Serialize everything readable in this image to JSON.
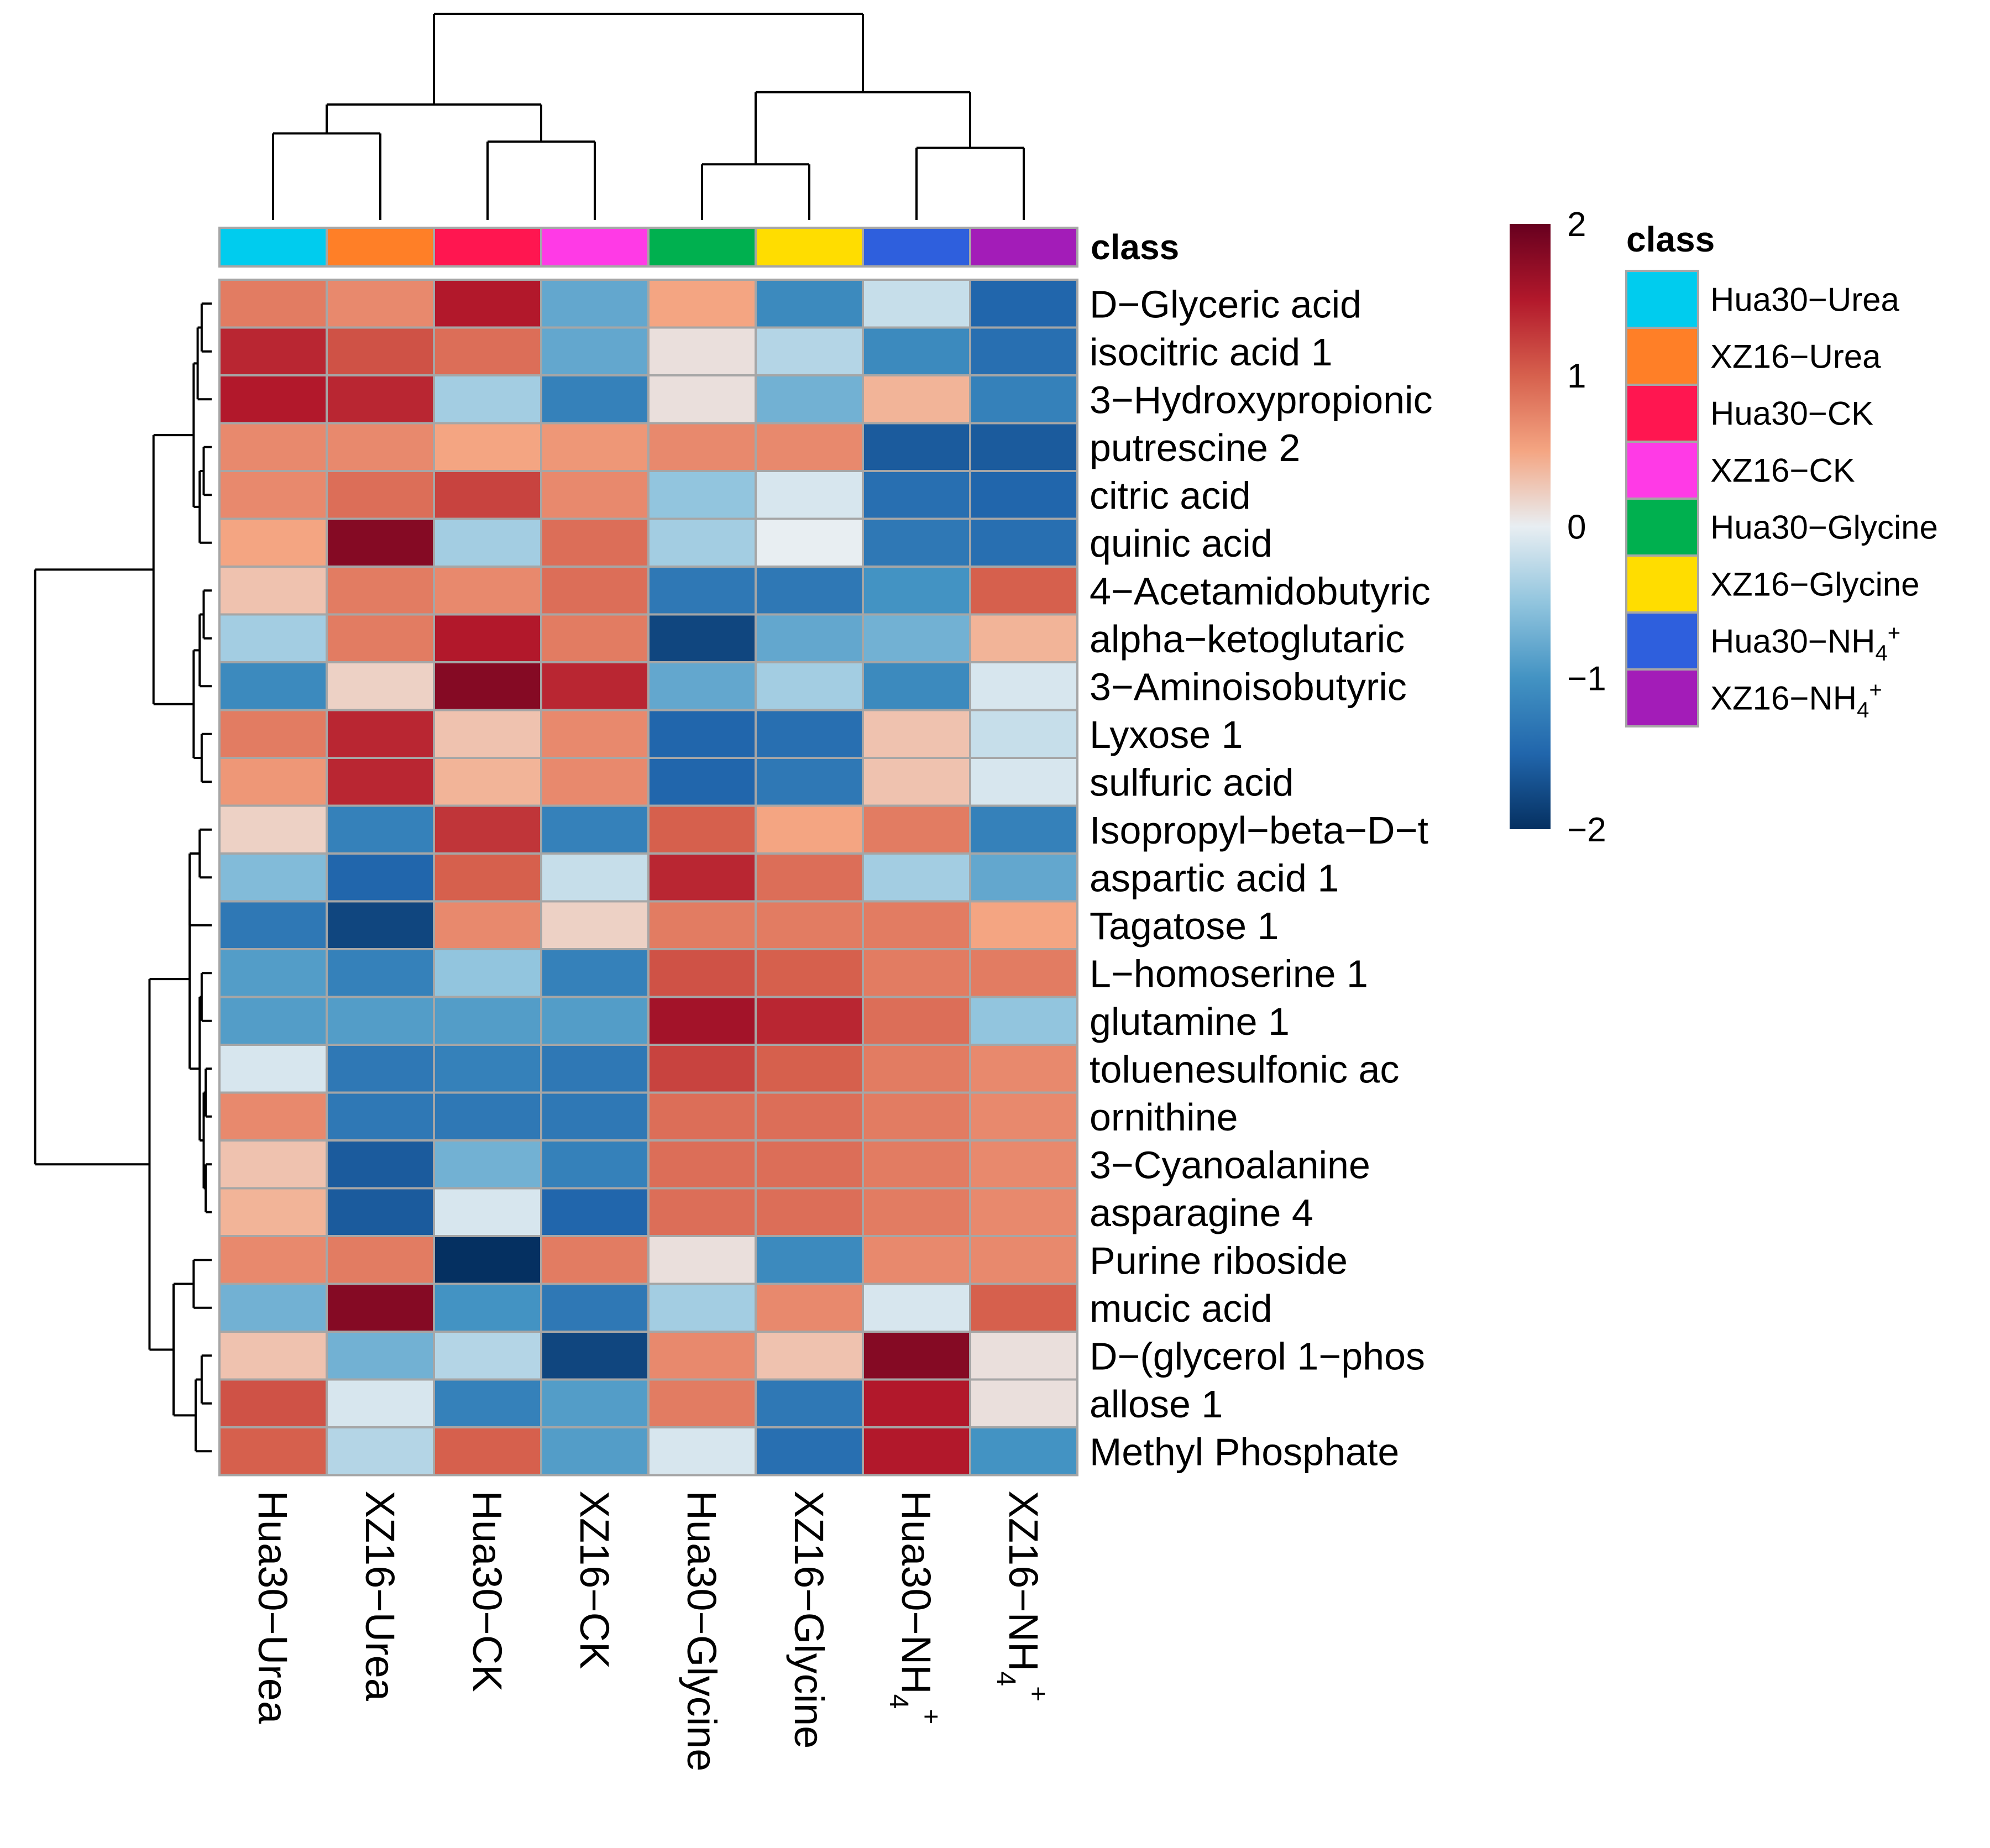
{
  "chart_data": {
    "type": "heatmap",
    "title": "",
    "annotation_title": "class",
    "legend_title": "class",
    "columns": [
      {
        "label": "Hua30−Urea",
        "class": "Hua30−Urea"
      },
      {
        "label": "XZ16−Urea",
        "class": "XZ16−Urea"
      },
      {
        "label": "Hua30−CK",
        "class": "Hua30−CK"
      },
      {
        "label": "XZ16−CK",
        "class": "XZ16−CK"
      },
      {
        "label": "Hua30−Glycine",
        "class": "Hua30−Glycine"
      },
      {
        "label": "XZ16−Glycine",
        "class": "XZ16−Glycine"
      },
      {
        "label": "Hua30−NH",
        "sub": "4",
        "sup": "+",
        "class": "Hua30−NH4+"
      },
      {
        "label": "XZ16−NH",
        "sub": "4",
        "sup": "+",
        "class": "XZ16−NH4+"
      }
    ],
    "classes": [
      {
        "name": "Hua30−Urea",
        "label": "Hua30−Urea",
        "color": "#00CCEE"
      },
      {
        "name": "XZ16−Urea",
        "label": "XZ16−Urea",
        "color": "#FF7F27"
      },
      {
        "name": "Hua30−CK",
        "label": "Hua30−CK",
        "color": "#FF1650"
      },
      {
        "name": "XZ16−CK",
        "label": "XZ16−CK",
        "color": "#FF3AE6"
      },
      {
        "name": "Hua30−Glycine",
        "label": "Hua30−Glycine",
        "color": "#00B04F"
      },
      {
        "name": "XZ16−Glycine",
        "label": "XZ16−Glycine",
        "color": "#FFDD00"
      },
      {
        "name": "Hua30−NH4+",
        "label": "Hua30−NH",
        "sub": "4",
        "sup": "+",
        "color": "#2E5FDD"
      },
      {
        "name": "XZ16−NH4+",
        "label": "XZ16−NH",
        "sub": "4",
        "sup": "+",
        "color": "#A31CB8"
      }
    ],
    "rows": [
      "D−Glyceric acid",
      "isocitric acid 1",
      "3−Hydroxypropionic",
      "putrescine 2",
      "citric acid",
      "quinic acid",
      "4−Acetamidobutyric",
      "alpha−ketoglutaric",
      "3−Aminoisobutyric",
      "Lyxose 1",
      "sulfuric acid",
      "Isopropyl−beta−D−t",
      "aspartic acid 1",
      "Tagatose 1",
      "L−homoserine 1",
      "glutamine 1",
      "toluenesulfonic ac",
      "ornithine",
      "3−Cyanoalanine",
      "asparagine 4",
      "Purine riboside",
      "mucic acid",
      "D−(glycerol 1−phos",
      "allose 1",
      "Methyl Phosphate"
    ],
    "values": [
      [
        0.8,
        0.7,
        1.5,
        -0.8,
        0.5,
        -1.1,
        -0.2,
        -1.5
      ],
      [
        1.4,
        1.1,
        0.9,
        -0.8,
        0.1,
        -0.3,
        -1.1,
        -1.4
      ],
      [
        1.5,
        1.4,
        -0.4,
        -1.2,
        0.1,
        -0.7,
        0.4,
        -1.2
      ],
      [
        0.7,
        0.7,
        0.5,
        0.6,
        0.7,
        0.7,
        -1.6,
        -1.6
      ],
      [
        0.7,
        0.9,
        1.2,
        0.7,
        -0.5,
        -0.1,
        -1.4,
        -1.5
      ],
      [
        0.5,
        1.8,
        -0.4,
        0.9,
        -0.4,
        0.0,
        -1.3,
        -1.4
      ],
      [
        0.3,
        0.8,
        0.7,
        0.9,
        -1.3,
        -1.3,
        -1.0,
        1.0
      ],
      [
        -0.4,
        0.8,
        1.5,
        0.8,
        -1.8,
        -0.8,
        -0.7,
        0.4
      ],
      [
        -1.1,
        0.2,
        1.8,
        1.4,
        -0.8,
        -0.4,
        -1.1,
        -0.1
      ],
      [
        0.8,
        1.4,
        0.3,
        0.7,
        -1.5,
        -1.4,
        0.3,
        -0.2
      ],
      [
        0.6,
        1.4,
        0.4,
        0.7,
        -1.5,
        -1.3,
        0.3,
        -0.1
      ],
      [
        0.2,
        -1.2,
        1.3,
        -1.2,
        1.0,
        0.5,
        0.8,
        -1.2
      ],
      [
        -0.6,
        -1.5,
        1.0,
        -0.2,
        1.4,
        0.9,
        -0.4,
        -0.8
      ],
      [
        -1.3,
        -1.8,
        0.7,
        0.2,
        0.8,
        0.8,
        0.8,
        0.5
      ],
      [
        -0.9,
        -1.2,
        -0.5,
        -1.2,
        1.1,
        1.0,
        0.8,
        0.8
      ],
      [
        -0.9,
        -0.9,
        -0.9,
        -0.9,
        1.6,
        1.4,
        0.9,
        -0.5
      ],
      [
        -0.1,
        -1.3,
        -1.2,
        -1.3,
        1.2,
        1.0,
        0.8,
        0.7
      ],
      [
        0.7,
        -1.3,
        -1.3,
        -1.3,
        0.9,
        0.9,
        0.8,
        0.7
      ],
      [
        0.3,
        -1.6,
        -0.7,
        -1.2,
        0.9,
        0.9,
        0.8,
        0.7
      ],
      [
        0.4,
        -1.6,
        -0.1,
        -1.5,
        0.9,
        0.9,
        0.8,
        0.7
      ],
      [
        0.7,
        0.8,
        -2.0,
        0.8,
        0.1,
        -1.1,
        0.7,
        0.7
      ],
      [
        -0.7,
        1.8,
        -1.0,
        -1.3,
        -0.4,
        0.7,
        -0.1,
        1.0
      ],
      [
        0.3,
        -0.7,
        -0.3,
        -1.8,
        0.7,
        0.3,
        1.8,
        0.1
      ],
      [
        1.1,
        -0.1,
        -1.2,
        -0.9,
        0.8,
        -1.3,
        1.5,
        0.1
      ],
      [
        1.0,
        -0.3,
        1.0,
        -0.9,
        -0.1,
        -1.4,
        1.5,
        -1.0
      ]
    ],
    "color_scale": {
      "min": -2,
      "max": 2,
      "ticks": [
        2,
        1,
        0,
        -1,
        -2
      ],
      "tick_labels": [
        "2",
        "1",
        "0",
        "−1",
        "−2"
      ],
      "stops": [
        "#053061",
        "#2166AC",
        "#4393C3",
        "#92C5DE",
        "#E8EEF2",
        "#F4A582",
        "#D6604D",
        "#B2182B",
        "#67001F"
      ]
    },
    "column_dendrogram": {
      "merges": [
        [
          0,
          1,
          0.42
        ],
        [
          2,
          3,
          0.38
        ],
        [
          -1,
          -2,
          0.56
        ],
        [
          4,
          5,
          0.27
        ],
        [
          6,
          7,
          0.35
        ],
        [
          -4,
          -5,
          0.62
        ],
        [
          -3,
          -6,
          1.0
        ]
      ]
    },
    "row_dendrogram": {
      "merges": [
        [
          0,
          1,
          0.05
        ],
        [
          -1,
          2,
          0.07
        ],
        [
          3,
          4,
          0.04
        ],
        [
          -3,
          5,
          0.06
        ],
        [
          -2,
          -4,
          0.09
        ],
        [
          6,
          7,
          0.04
        ],
        [
          -6,
          8,
          0.06
        ],
        [
          9,
          10,
          0.05
        ],
        [
          -7,
          -8,
          0.09
        ],
        [
          -5,
          -9,
          0.29
        ],
        [
          11,
          12,
          0.06
        ],
        [
          -11,
          13,
          0.11
        ],
        [
          14,
          15,
          0.05
        ],
        [
          16,
          17,
          0.03
        ],
        [
          18,
          19,
          0.03
        ],
        [
          -14,
          -15,
          0.04
        ],
        [
          -13,
          -16,
          0.06
        ],
        [
          -12,
          -17,
          0.11
        ],
        [
          20,
          21,
          0.09
        ],
        [
          22,
          23,
          0.05
        ],
        [
          -20,
          24,
          0.08
        ],
        [
          -19,
          -21,
          0.19
        ],
        [
          -18,
          -22,
          0.31
        ],
        [
          -10,
          -23,
          0.88
        ]
      ]
    }
  }
}
